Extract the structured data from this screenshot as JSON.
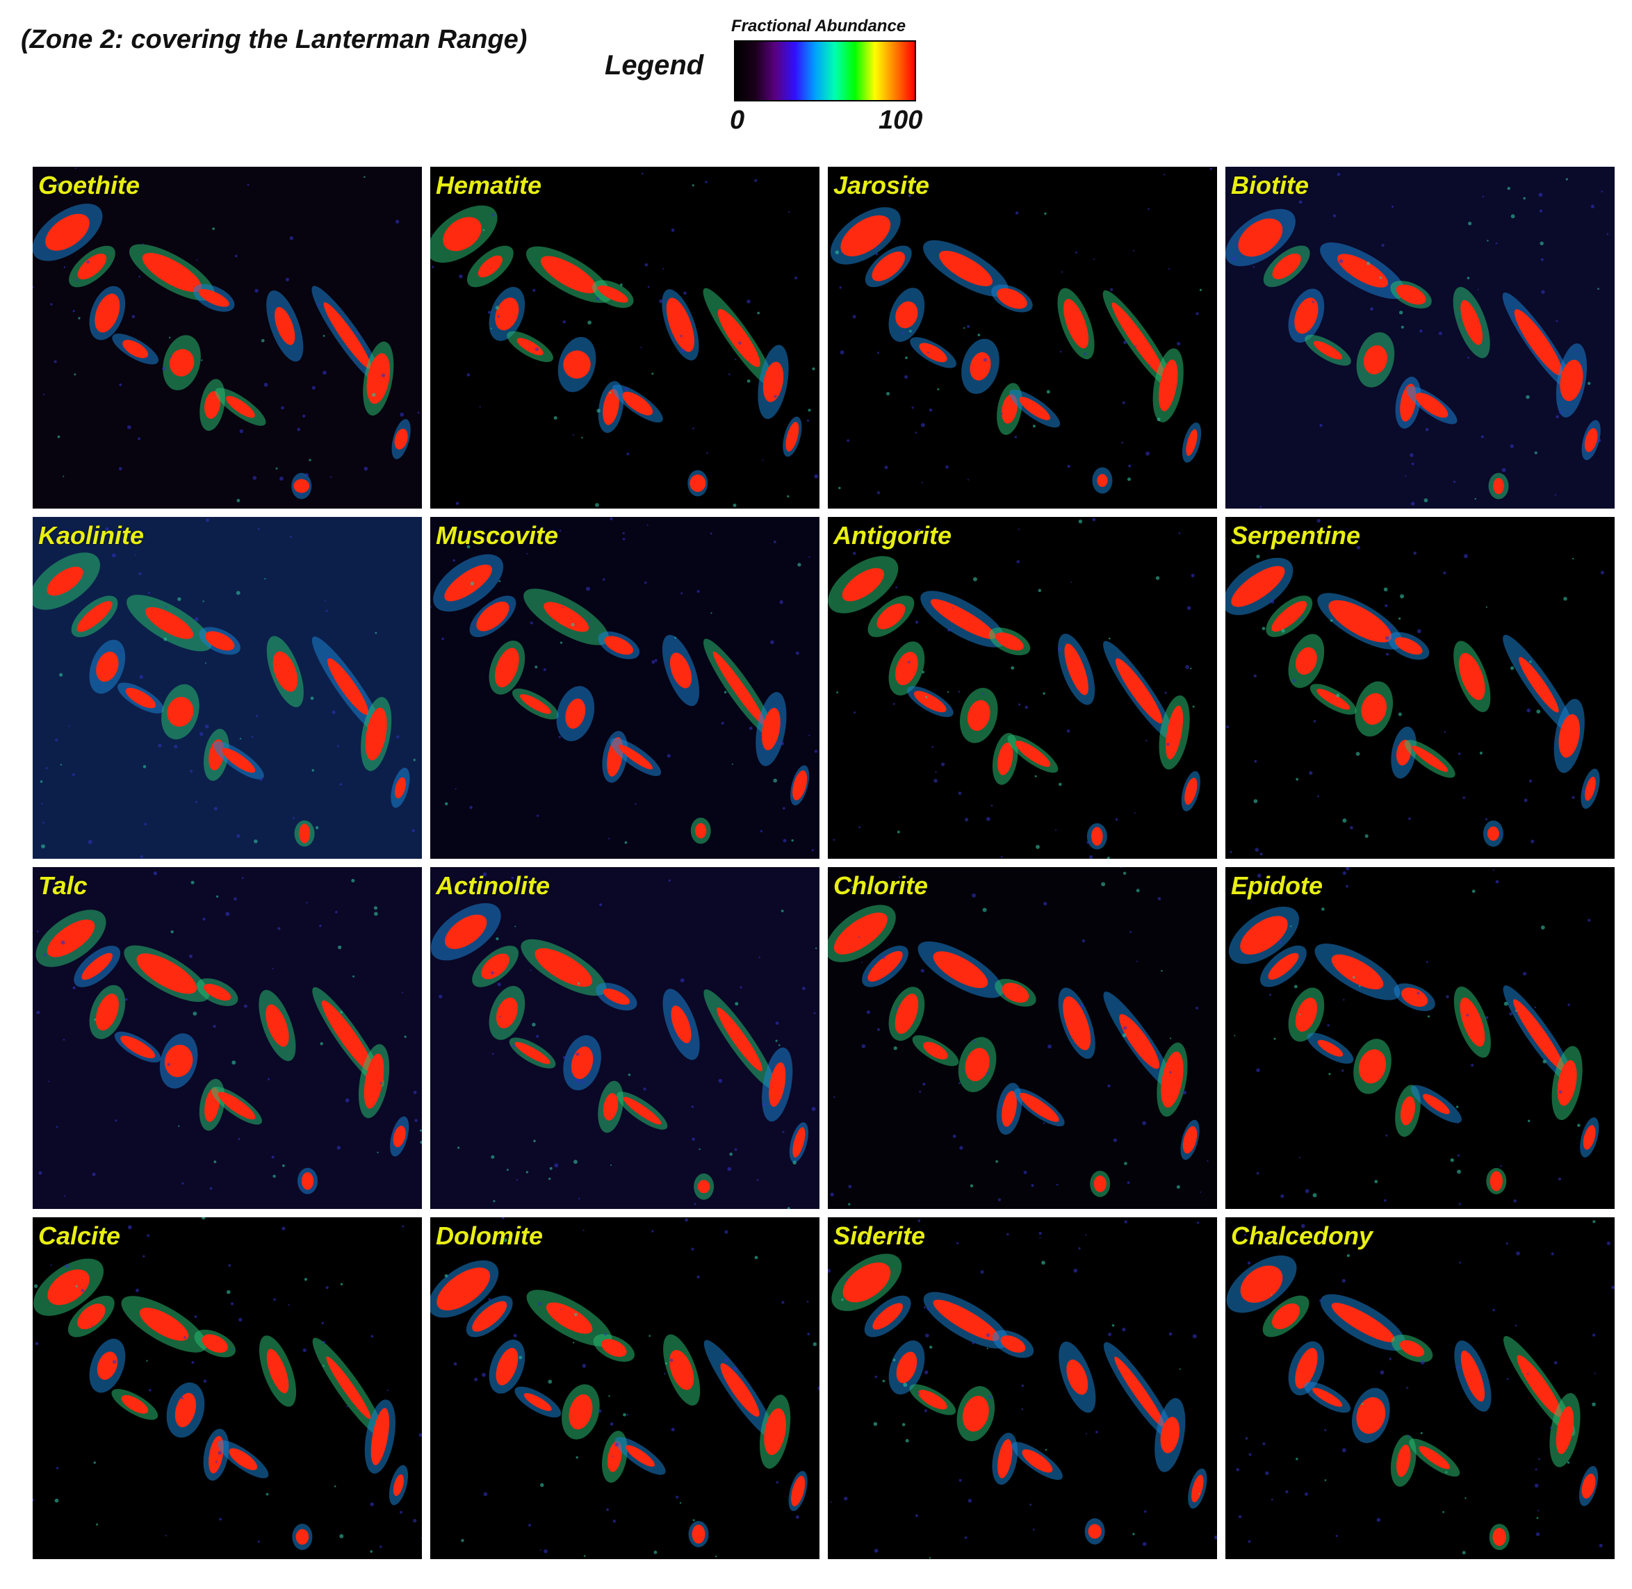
{
  "header": {
    "title": "(Zone 2: covering the Lanterman Range)"
  },
  "legend": {
    "label": "Legend",
    "caption": "Fractional Abundance",
    "min_label": "0",
    "max_label": "100",
    "colormap": [
      "#000000",
      "#1a001a",
      "#5a0080",
      "#3010ff",
      "#00a0ff",
      "#00ffb0",
      "#00ff00",
      "#ffff00",
      "#ff8000",
      "#ff0000"
    ]
  },
  "panels": [
    {
      "label": "Goethite",
      "background": "#07030f"
    },
    {
      "label": "Hematite",
      "background": "#000000"
    },
    {
      "label": "Jarosite",
      "background": "#000000"
    },
    {
      "label": "Biotite",
      "background": "#0a0a2a"
    },
    {
      "label": "Kaolinite",
      "background": "#0c1f4a"
    },
    {
      "label": "Muscovite",
      "background": "#050316"
    },
    {
      "label": "Antigorite",
      "background": "#000000"
    },
    {
      "label": "Serpentine",
      "background": "#000000"
    },
    {
      "label": "Talc",
      "background": "#0a0826"
    },
    {
      "label": "Actinolite",
      "background": "#0a0826"
    },
    {
      "label": "Chlorite",
      "background": "#020208"
    },
    {
      "label": "Epidote",
      "background": "#000000"
    },
    {
      "label": "Calcite",
      "background": "#000000"
    },
    {
      "label": "Dolomite",
      "background": "#000000"
    },
    {
      "label": "Siderite",
      "background": "#000000"
    },
    {
      "label": "Chalcedony",
      "background": "#000000"
    }
  ]
}
